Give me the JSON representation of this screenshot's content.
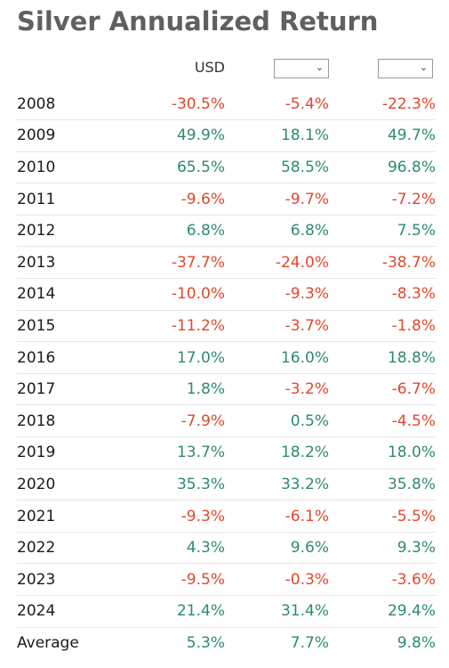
{
  "title": "Silver Annualized Return",
  "header": {
    "usd_label": "USD",
    "select1_value": "",
    "select2_value": ""
  },
  "colors": {
    "positive": "#2e8b6a",
    "negative": "#e0482c",
    "title": "#606060"
  },
  "rows": [
    {
      "year": "2008",
      "values": [
        "-30.5%",
        "-5.4%",
        "-22.3%"
      ]
    },
    {
      "year": "2009",
      "values": [
        "49.9%",
        "18.1%",
        "49.7%"
      ]
    },
    {
      "year": "2010",
      "values": [
        "65.5%",
        "58.5%",
        "96.8%"
      ]
    },
    {
      "year": "2011",
      "values": [
        "-9.6%",
        "-9.7%",
        "-7.2%"
      ]
    },
    {
      "year": "2012",
      "values": [
        "6.8%",
        "6.8%",
        "7.5%"
      ]
    },
    {
      "year": "2013",
      "values": [
        "-37.7%",
        "-24.0%",
        "-38.7%"
      ]
    },
    {
      "year": "2014",
      "values": [
        "-10.0%",
        "-9.3%",
        "-8.3%"
      ]
    },
    {
      "year": "2015",
      "values": [
        "-11.2%",
        "-3.7%",
        "-1.8%"
      ]
    },
    {
      "year": "2016",
      "values": [
        "17.0%",
        "16.0%",
        "18.8%"
      ]
    },
    {
      "year": "2017",
      "values": [
        "1.8%",
        "-3.2%",
        "-6.7%"
      ]
    },
    {
      "year": "2018",
      "values": [
        "-7.9%",
        "0.5%",
        "-4.5%"
      ]
    },
    {
      "year": "2019",
      "values": [
        "13.7%",
        "18.2%",
        "18.0%"
      ]
    },
    {
      "year": "2020",
      "values": [
        "35.3%",
        "33.2%",
        "35.8%"
      ]
    },
    {
      "year": "2021",
      "values": [
        "-9.3%",
        "-6.1%",
        "-5.5%"
      ]
    },
    {
      "year": "2022",
      "values": [
        "4.3%",
        "9.6%",
        "9.3%"
      ]
    },
    {
      "year": "2023",
      "values": [
        "-9.5%",
        "-0.3%",
        "-3.6%"
      ]
    },
    {
      "year": "2024",
      "values": [
        "21.4%",
        "31.4%",
        "29.4%"
      ]
    },
    {
      "year": "Average",
      "values": [
        "5.3%",
        "7.7%",
        "9.8%"
      ]
    }
  ]
}
